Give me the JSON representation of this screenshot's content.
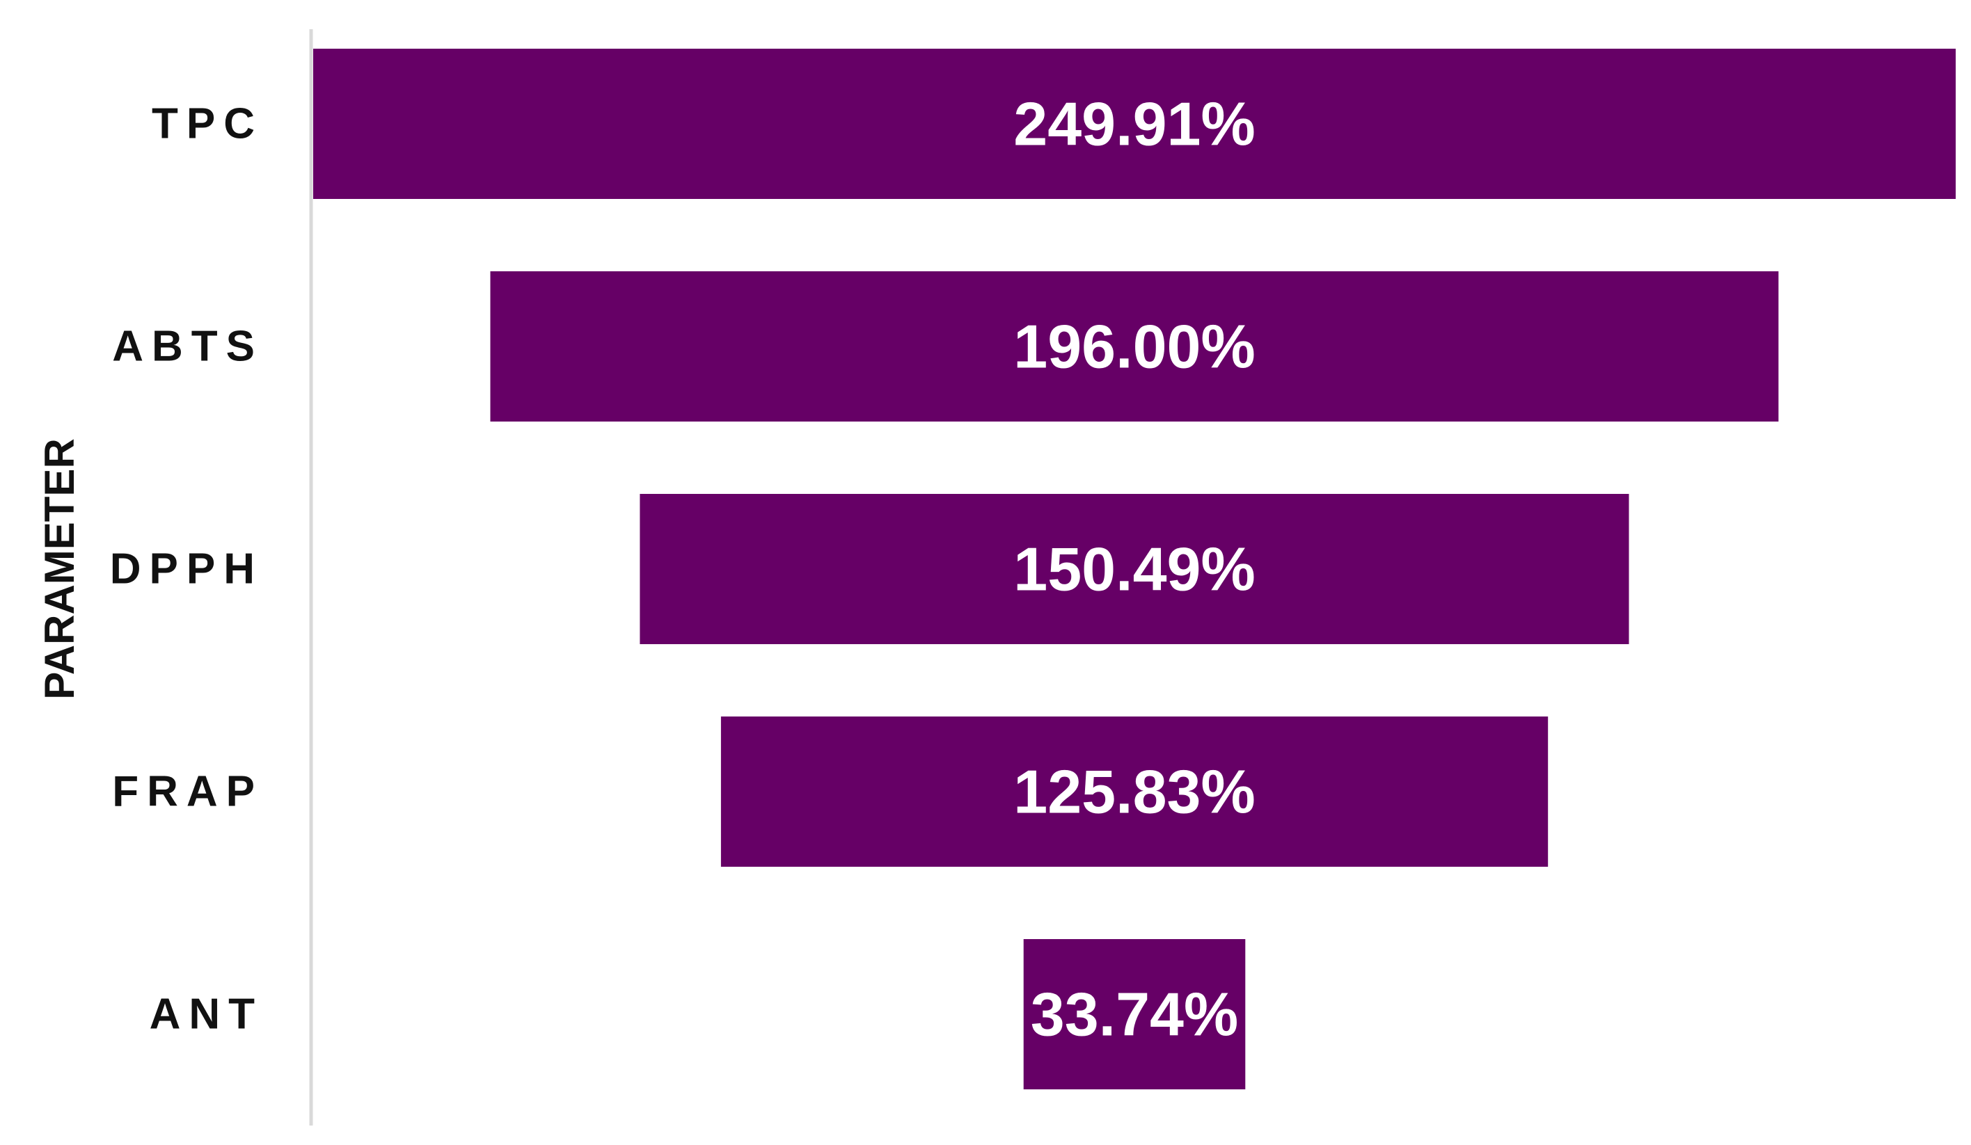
{
  "chart_data": {
    "type": "bar",
    "orientation": "horizontal",
    "layout": "centered-funnel",
    "ylabel": "PARAMETER",
    "xlabel": "",
    "title": "",
    "grid": false,
    "categories": [
      "TPC",
      "ABTS",
      "DPPH",
      "FRAP",
      "ANT"
    ],
    "values": [
      249.91,
      196.0,
      150.49,
      125.83,
      33.74
    ],
    "data_labels": [
      "249.91%",
      "196.00%",
      "150.49%",
      "125.83%",
      "33.74%"
    ],
    "unit": "%",
    "colors": {
      "bar": "#660066",
      "label_text": "#ffffff",
      "axis_line": "#d9d9d9",
      "category_text": "#111111"
    }
  }
}
